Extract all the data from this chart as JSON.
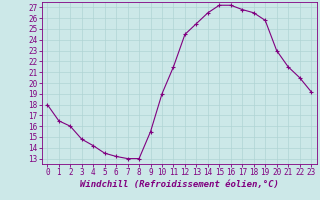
{
  "x": [
    0,
    1,
    2,
    3,
    4,
    5,
    6,
    7,
    8,
    9,
    10,
    11,
    12,
    13,
    14,
    15,
    16,
    17,
    18,
    19,
    20,
    21,
    22,
    23
  ],
  "y": [
    18,
    16.5,
    16,
    14.8,
    14.2,
    13.5,
    13.2,
    13.0,
    13.0,
    15.5,
    19.0,
    21.5,
    24.5,
    25.5,
    26.5,
    27.2,
    27.2,
    26.8,
    26.5,
    25.8,
    23.0,
    21.5,
    20.5,
    19.2
  ],
  "line_color": "#800080",
  "marker": "+",
  "marker_color": "#800080",
  "bg_color": "#cce8e8",
  "grid_color": "#b0d4d4",
  "xlabel": "Windchill (Refroidissement éolien,°C)",
  "xlim": [
    -0.5,
    23.5
  ],
  "ylim": [
    12.5,
    27.5
  ],
  "yticks": [
    13,
    14,
    15,
    16,
    17,
    18,
    19,
    20,
    21,
    22,
    23,
    24,
    25,
    26,
    27
  ],
  "xticks": [
    0,
    1,
    2,
    3,
    4,
    5,
    6,
    7,
    8,
    9,
    10,
    11,
    12,
    13,
    14,
    15,
    16,
    17,
    18,
    19,
    20,
    21,
    22,
    23
  ],
  "tick_fontsize": 5.5,
  "xlabel_fontsize": 6.5,
  "line_width": 0.8,
  "marker_size": 3.5,
  "marker_linewidth": 0.8
}
